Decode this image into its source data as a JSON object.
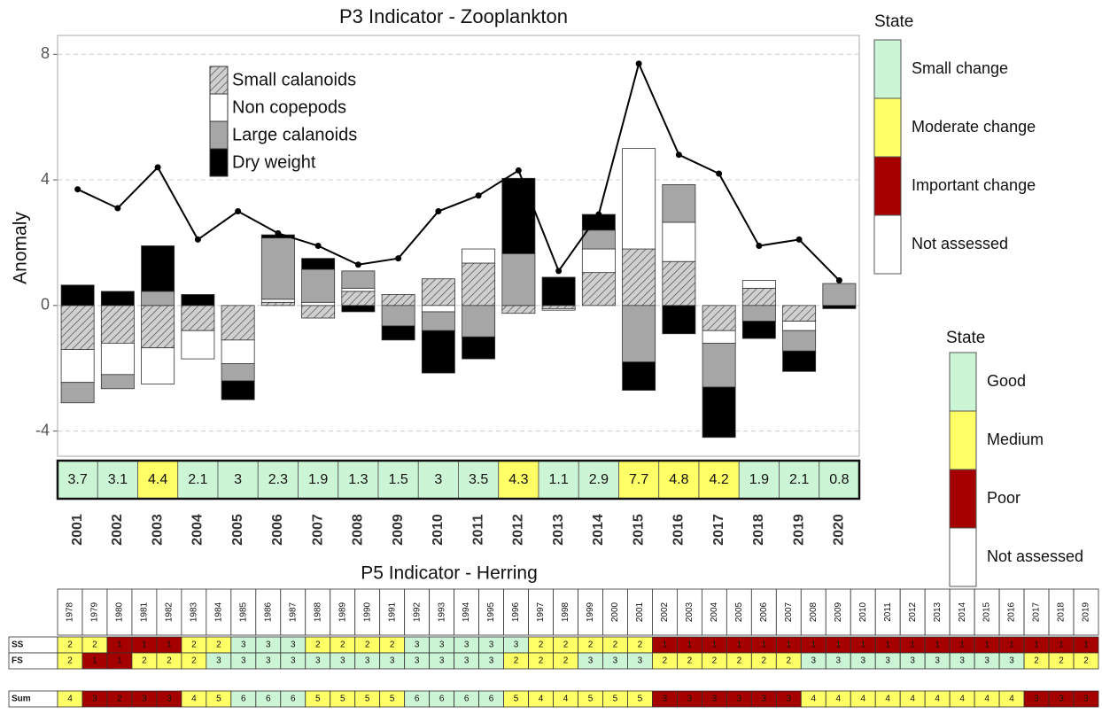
{
  "chart_data": {
    "type": "bar",
    "title": "P3 Indicator - Zooplankton",
    "y_label": "Anomaly",
    "categories": [
      "2001",
      "2002",
      "2003",
      "2004",
      "2005",
      "2006",
      "2007",
      "2008",
      "2009",
      "2010",
      "2011",
      "2012",
      "2013",
      "2014",
      "2015",
      "2016",
      "2017",
      "2018",
      "2019",
      "2020"
    ],
    "series": [
      {
        "name": "Small calanoids",
        "color": "#a6a6a6",
        "hatch": true,
        "values": [
          -1.4,
          -1.2,
          -1.35,
          -0.8,
          -1.1,
          0.1,
          -0.4,
          0.45,
          0.35,
          0.85,
          1.35,
          -0.25,
          -0.1,
          1.05,
          1.8,
          1.4,
          -0.8,
          0.55,
          -0.5,
          0
        ]
      },
      {
        "name": "Non copepods",
        "color": "#ffffff",
        "values": [
          -1.05,
          -1.0,
          -1.15,
          -0.9,
          -0.75,
          0.1,
          0.1,
          0.1,
          0,
          -0.2,
          0.45,
          0,
          -0.05,
          0.75,
          3.2,
          1.25,
          -0.4,
          0.25,
          -0.3,
          0
        ]
      },
      {
        "name": "Large calanoids",
        "color": "#a6a6a6",
        "values": [
          -0.65,
          -0.45,
          0.45,
          0,
          -0.55,
          1.95,
          1.05,
          0.55,
          -0.65,
          -0.6,
          -1.0,
          1.65,
          0,
          0.6,
          -1.8,
          1.2,
          -1.4,
          -0.5,
          -0.65,
          0.7
        ]
      },
      {
        "name": "Dry weight",
        "color": "#000000",
        "values": [
          0.65,
          0.45,
          1.45,
          0.35,
          -0.6,
          0.1,
          0.35,
          -0.2,
          -0.45,
          -1.35,
          -0.7,
          2.4,
          0.9,
          0.5,
          -0.9,
          -0.9,
          -1.6,
          -0.55,
          -0.65,
          -0.1
        ]
      }
    ],
    "indicator": {
      "color": "#000000",
      "values": [
        3.7,
        3.1,
        4.4,
        2.1,
        3,
        2.3,
        1.9,
        1.3,
        1.5,
        3,
        3.5,
        4.3,
        1.1,
        2.9,
        7.7,
        4.8,
        4.2,
        1.9,
        2.1,
        0.8
      ],
      "states": [
        "Small change",
        "Small change",
        "Moderate change",
        "Small change",
        "Small change",
        "Small change",
        "Small change",
        "Small change",
        "Small change",
        "Small change",
        "Small change",
        "Moderate change",
        "Small change",
        "Small change",
        "Moderate change",
        "Moderate change",
        "Moderate change",
        "Small change",
        "Small change",
        "Small change"
      ]
    },
    "ylim": [
      -4.8,
      8.6
    ],
    "yticks": [
      -4,
      0,
      4,
      8
    ],
    "grid": true,
    "legend": "top-left",
    "state_legend": {
      "title": "State",
      "items": [
        {
          "label": "Small change",
          "color": "#ccf5d5"
        },
        {
          "label": "Moderate change",
          "color": "#ffff66"
        },
        {
          "label": "Important change",
          "color": "#a50000"
        },
        {
          "label": "Not assessed",
          "color": "#ffffff"
        }
      ]
    }
  },
  "table": {
    "title": "P5 Indicator - Herring",
    "columns": [
      "1978",
      "1979",
      "1980",
      "1981",
      "1982",
      "1983",
      "1984",
      "1985",
      "1986",
      "1987",
      "1988",
      "1989",
      "1990",
      "1991",
      "1992",
      "1993",
      "1994",
      "1995",
      "1996",
      "1997",
      "1998",
      "1999",
      "2000",
      "2001",
      "2002",
      "2003",
      "2004",
      "2005",
      "2006",
      "2007",
      "2008",
      "2009",
      "2010",
      "2011",
      "2012",
      "2013",
      "2014",
      "2015",
      "2016",
      "2017",
      "2018",
      "2019"
    ],
    "rows": [
      {
        "label": "SS",
        "values": [
          2,
          2,
          1,
          1,
          1,
          2,
          2,
          3,
          3,
          3,
          2,
          2,
          2,
          2,
          3,
          3,
          3,
          3,
          3,
          2,
          2,
          2,
          2,
          2,
          1,
          1,
          1,
          1,
          1,
          1,
          1,
          1,
          1,
          1,
          1,
          1,
          1,
          1,
          1,
          1,
          1,
          1
        ],
        "state_by_value": {
          "1": "Poor",
          "2": "Medium",
          "3": "Good"
        }
      },
      {
        "label": "FS",
        "values": [
          2,
          1,
          1,
          2,
          2,
          2,
          3,
          3,
          3,
          3,
          3,
          3,
          3,
          3,
          3,
          3,
          3,
          3,
          2,
          2,
          2,
          3,
          3,
          3,
          2,
          2,
          2,
          2,
          2,
          2,
          3,
          3,
          3,
          3,
          3,
          3,
          3,
          3,
          3,
          2,
          2,
          2
        ],
        "state_by_value": {
          "1": "Poor",
          "2": "Medium",
          "3": "Good"
        }
      },
      {
        "label": "Sum",
        "values": [
          4,
          3,
          2,
          3,
          3,
          4,
          5,
          6,
          6,
          6,
          5,
          5,
          5,
          5,
          6,
          6,
          6,
          6,
          5,
          4,
          4,
          5,
          5,
          5,
          3,
          3,
          3,
          3,
          3,
          3,
          4,
          4,
          4,
          4,
          4,
          4,
          4,
          4,
          4,
          3,
          3,
          3
        ],
        "state_by_value": {
          "2": "Poor",
          "3": "Poor",
          "4": "Medium",
          "5": "Medium",
          "6": "Good"
        }
      }
    ],
    "state_legend": {
      "title": "State",
      "items": [
        {
          "label": "Good",
          "color": "#ccf5d5"
        },
        {
          "label": "Medium",
          "color": "#ffff66"
        },
        {
          "label": "Poor",
          "color": "#a50000"
        },
        {
          "label": "Not assessed",
          "color": "#ffffff"
        }
      ]
    }
  }
}
